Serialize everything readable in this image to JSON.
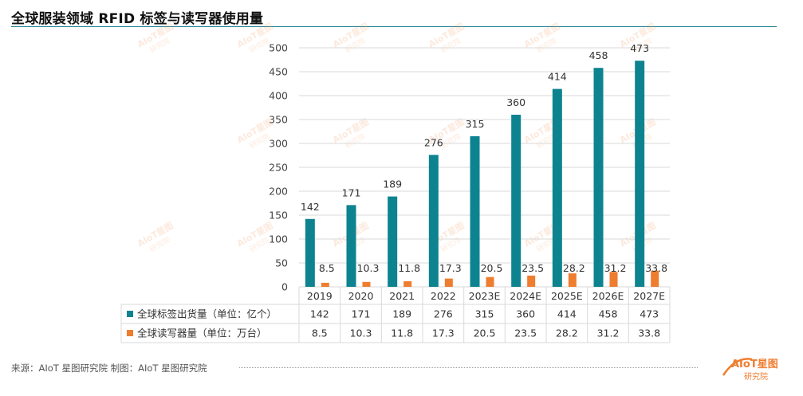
{
  "title": "全球服装领域 RFID 标签与读写器使用量",
  "footer": {
    "source": "来源：AIoT 星图研究院    制图：AIoT 星图研究院"
  },
  "watermark": {
    "line1": "AIoT星图",
    "line2": "研究院"
  },
  "logo": {
    "line1": "AIoT星图",
    "line2": "研究院"
  },
  "colors": {
    "accent": "#1b7d8c",
    "series1": "#0e8390",
    "series2": "#ef7d2f",
    "grid": "#d9d9d9"
  },
  "chart_data": {
    "type": "bar",
    "title": "全球服装领域 RFID 标签与读写器使用量",
    "categories": [
      "2019",
      "2020",
      "2021",
      "2022",
      "2023E",
      "2024E",
      "2025E",
      "2026E",
      "2027E"
    ],
    "series": [
      {
        "name": "全球标签出货量（单位：亿个）",
        "values": [
          142,
          171,
          189,
          276,
          315,
          360,
          414,
          458,
          473
        ]
      },
      {
        "name": "全球读写器量（单位：万台）",
        "values": [
          8.5,
          10.3,
          11.8,
          17.3,
          20.5,
          23.5,
          28.2,
          31.2,
          33.8
        ]
      }
    ],
    "ylim": [
      0,
      500
    ],
    "yticks": [
      0,
      50,
      100,
      150,
      200,
      250,
      300,
      350,
      400,
      450,
      500
    ],
    "grid": true,
    "legend": "data-table"
  }
}
